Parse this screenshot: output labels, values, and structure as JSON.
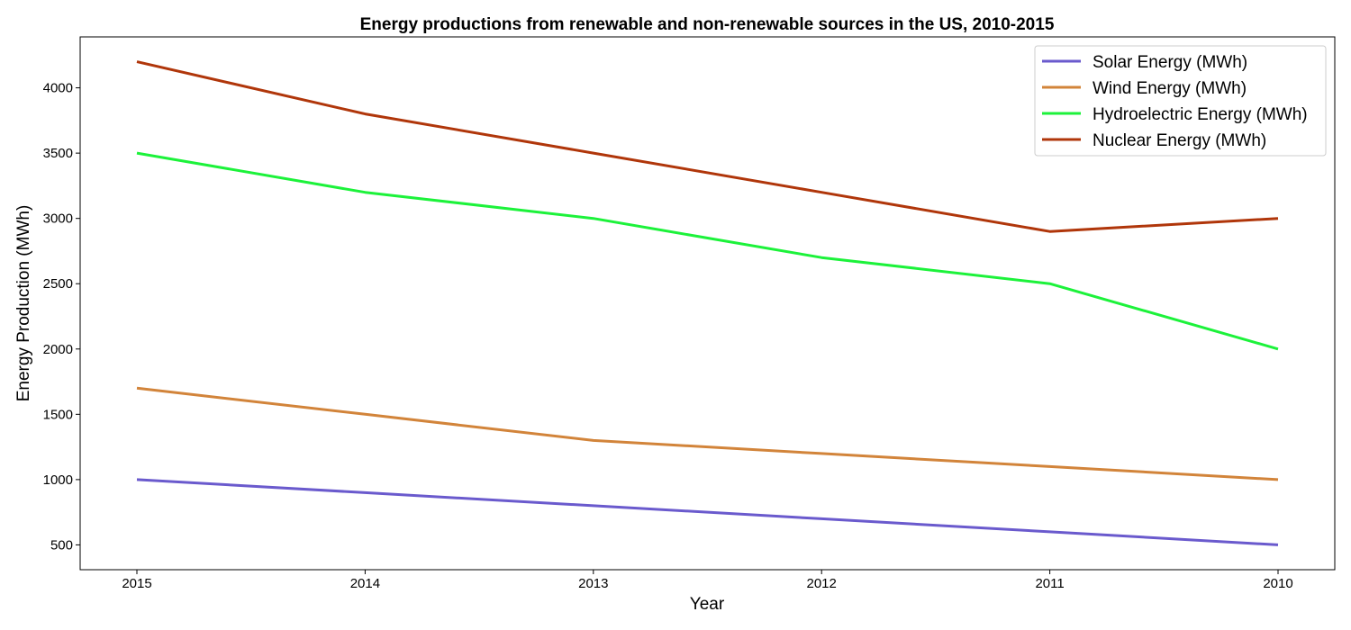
{
  "chart_data": {
    "type": "line",
    "title": "Energy productions from renewable and non-renewable sources in the US, 2010-2015",
    "xlabel": "Year",
    "ylabel": "Energy Production (MWh)",
    "categories": [
      "2015",
      "2014",
      "2013",
      "2012",
      "2011",
      "2010"
    ],
    "ylim": [
      310,
      4390
    ],
    "yticks": [
      500,
      1000,
      1500,
      2000,
      2500,
      3000,
      3500,
      4000
    ],
    "grid": false,
    "legend_position": "top-right",
    "series": [
      {
        "name": "Solar Energy (MWh)",
        "color": "#6a5acd",
        "values": [
          1000,
          900,
          800,
          700,
          600,
          500
        ]
      },
      {
        "name": "Wind Energy (MWh)",
        "color": "#d2843a",
        "values": [
          1700,
          1500,
          1300,
          1200,
          1100,
          1000
        ]
      },
      {
        "name": "Hydroelectric Energy (MWh)",
        "color": "#1cf23a",
        "values": [
          3500,
          3200,
          3000,
          2700,
          2500,
          2000
        ]
      },
      {
        "name": "Nuclear Energy (MWh)",
        "color": "#b0360a",
        "values": [
          4200,
          3800,
          3500,
          3200,
          2900,
          3000
        ]
      }
    ]
  }
}
